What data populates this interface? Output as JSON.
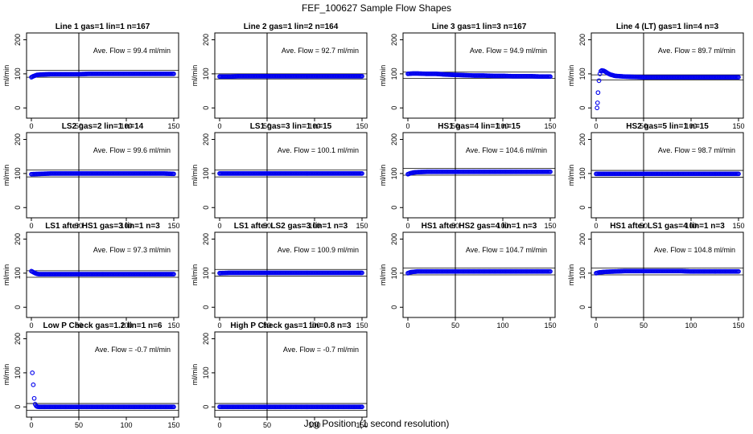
{
  "title": "FEF_100627  Sample Flow Shapes",
  "xlabel": "Jog Position (1 second resolution)",
  "colors": {
    "points": "#0000ee",
    "axes": "#000000",
    "background": "#ffffff"
  },
  "chart_data": [
    {
      "type": "scatter",
      "title": "Line 1 gas=1 lin=1 n=167",
      "ylabel": "ml/min",
      "annotation": "Ave. Flow =  99.4  ml/min",
      "xlim": [
        0,
        150
      ],
      "ylim": [
        -30,
        220
      ],
      "xticks": [
        0,
        50,
        100,
        150
      ],
      "yticks": [
        0,
        100,
        200
      ],
      "vline": 50,
      "hlines": [
        90,
        110
      ],
      "x": [
        0,
        2,
        4,
        6,
        10,
        20,
        30,
        40,
        50,
        60,
        70,
        80,
        90,
        100,
        110,
        120,
        130,
        140,
        150
      ],
      "y": [
        90,
        93,
        95,
        97,
        98,
        99,
        99,
        99,
        99,
        100,
        100,
        100,
        100,
        100,
        100,
        100,
        100,
        100,
        100
      ]
    },
    {
      "type": "scatter",
      "title": "Line 2 gas=1 lin=2 n=164",
      "ylabel": "ml/min",
      "annotation": "Ave. Flow =  92.7  ml/min",
      "xlim": [
        0,
        150
      ],
      "ylim": [
        -30,
        220
      ],
      "xticks": [
        0,
        50,
        100,
        150
      ],
      "yticks": [
        0,
        100,
        200
      ],
      "vline": 50,
      "hlines": [
        85,
        100
      ],
      "x": [
        0,
        10,
        20,
        30,
        40,
        50,
        60,
        70,
        80,
        90,
        100,
        110,
        120,
        130,
        140,
        150
      ],
      "y": [
        92,
        92,
        93,
        93,
        93,
        93,
        93,
        93,
        93,
        93,
        93,
        93,
        93,
        93,
        93,
        93
      ]
    },
    {
      "type": "scatter",
      "title": "Line 3 gas=1 lin=3 n=167",
      "ylabel": "ml/min",
      "annotation": "Ave. Flow =  94.9  ml/min",
      "xlim": [
        0,
        150
      ],
      "ylim": [
        -30,
        220
      ],
      "xticks": [
        0,
        50,
        100,
        150
      ],
      "yticks": [
        0,
        100,
        200
      ],
      "vline": 50,
      "hlines": [
        87,
        105
      ],
      "x": [
        0,
        5,
        10,
        20,
        30,
        40,
        50,
        60,
        70,
        80,
        90,
        100,
        110,
        120,
        130,
        140,
        150
      ],
      "y": [
        100,
        101,
        101,
        100,
        100,
        98,
        97,
        96,
        95,
        95,
        94,
        94,
        93,
        93,
        93,
        92,
        92
      ]
    },
    {
      "type": "scatter",
      "title": "Line 4 (LT) gas=1 lin=4 n=3",
      "ylabel": "ml/min",
      "annotation": "Ave. Flow =  89.7  ml/min",
      "xlim": [
        0,
        150
      ],
      "ylim": [
        -30,
        220
      ],
      "xticks": [
        0,
        50,
        100,
        150
      ],
      "yticks": [
        0,
        100,
        200
      ],
      "vline": 50,
      "hlines": [
        82,
        97
      ],
      "x": [
        1,
        1.5,
        2,
        3,
        4,
        5,
        6,
        8,
        10,
        12,
        15,
        20,
        30,
        40,
        50,
        60,
        70,
        80,
        90,
        100,
        110,
        120,
        130,
        140,
        150
      ],
      "y": [
        0,
        15,
        45,
        80,
        100,
        108,
        110,
        109,
        106,
        102,
        98,
        94,
        92,
        91,
        90,
        90,
        90,
        90,
        90,
        90,
        90,
        90,
        90,
        90,
        90
      ]
    },
    {
      "type": "scatter",
      "title": "LS2 gas=2 lin=1 n=14",
      "ylabel": "ml/min",
      "annotation": "Ave. Flow =  99.6  ml/min",
      "xlim": [
        0,
        150
      ],
      "ylim": [
        -30,
        220
      ],
      "xticks": [
        0,
        50,
        100,
        150
      ],
      "yticks": [
        0,
        100,
        200
      ],
      "vline": 50,
      "hlines": [
        90,
        110
      ],
      "x": [
        0,
        10,
        20,
        30,
        40,
        50,
        60,
        70,
        80,
        90,
        100,
        110,
        120,
        130,
        140,
        150
      ],
      "y": [
        98,
        99,
        100,
        100,
        100,
        100,
        100,
        100,
        100,
        100,
        100,
        100,
        100,
        100,
        100,
        99
      ]
    },
    {
      "type": "scatter",
      "title": "LS1 gas=3 lin=1 n=15",
      "ylabel": "ml/min",
      "annotation": "Ave. Flow =  100.1  ml/min",
      "xlim": [
        0,
        150
      ],
      "ylim": [
        -30,
        220
      ],
      "xticks": [
        0,
        50,
        100,
        150
      ],
      "yticks": [
        0,
        100,
        200
      ],
      "vline": 50,
      "hlines": [
        90,
        110
      ],
      "x": [
        0,
        10,
        20,
        30,
        40,
        50,
        60,
        70,
        80,
        90,
        100,
        110,
        120,
        130,
        140,
        150
      ],
      "y": [
        100,
        100,
        100,
        100,
        100,
        100,
        100,
        100,
        100,
        100,
        100,
        100,
        100,
        100,
        100,
        100
      ]
    },
    {
      "type": "scatter",
      "title": "HS1 gas=4 lin=1 n=15",
      "ylabel": "ml/min",
      "annotation": "Ave. Flow =  104.6  ml/min",
      "xlim": [
        0,
        150
      ],
      "ylim": [
        -30,
        220
      ],
      "xticks": [
        0,
        50,
        100,
        150
      ],
      "yticks": [
        0,
        100,
        200
      ],
      "vline": 50,
      "hlines": [
        95,
        115
      ],
      "x": [
        0,
        3,
        6,
        10,
        20,
        30,
        40,
        50,
        60,
        70,
        80,
        90,
        100,
        110,
        120,
        130,
        140,
        150
      ],
      "y": [
        98,
        101,
        103,
        104,
        105,
        105,
        105,
        105,
        105,
        105,
        105,
        105,
        105,
        105,
        105,
        105,
        105,
        105
      ]
    },
    {
      "type": "scatter",
      "title": "HS2 gas=5 lin=1 n=15",
      "ylabel": "ml/min",
      "annotation": "Ave. Flow =  98.7  ml/min",
      "xlim": [
        0,
        150
      ],
      "ylim": [
        -30,
        220
      ],
      "xticks": [
        0,
        50,
        100,
        150
      ],
      "yticks": [
        0,
        100,
        200
      ],
      "vline": 50,
      "hlines": [
        89,
        109
      ],
      "x": [
        0,
        10,
        20,
        30,
        40,
        50,
        60,
        70,
        80,
        90,
        100,
        110,
        120,
        130,
        140,
        150
      ],
      "y": [
        99,
        99,
        99,
        99,
        99,
        99,
        99,
        99,
        99,
        99,
        99,
        99,
        99,
        99,
        99,
        99
      ]
    },
    {
      "type": "scatter",
      "title": "LS1 after HS1 gas=3 lin=1 n=3",
      "ylabel": "ml/min",
      "annotation": "Ave. Flow =  97.3  ml/min",
      "xlim": [
        0,
        150
      ],
      "ylim": [
        -30,
        220
      ],
      "xticks": [
        0,
        50,
        100,
        150
      ],
      "yticks": [
        0,
        100,
        200
      ],
      "vline": 50,
      "hlines": [
        88,
        107
      ],
      "x": [
        0,
        2,
        4,
        6,
        8,
        10,
        15,
        20,
        30,
        40,
        50,
        60,
        70,
        80,
        90,
        100,
        110,
        120,
        130,
        140,
        150
      ],
      "y": [
        106,
        103,
        100,
        98,
        97,
        97,
        97,
        97,
        97,
        97,
        97,
        97,
        97,
        97,
        97,
        97,
        97,
        97,
        97,
        97,
        97
      ]
    },
    {
      "type": "scatter",
      "title": "LS1 after LS2 gas=3 lin=1 n=3",
      "ylabel": "ml/min",
      "annotation": "Ave. Flow =  100.9  ml/min",
      "xlim": [
        0,
        150
      ],
      "ylim": [
        -30,
        220
      ],
      "xticks": [
        0,
        50,
        100,
        150
      ],
      "yticks": [
        0,
        100,
        200
      ],
      "vline": 50,
      "hlines": [
        91,
        111
      ],
      "x": [
        0,
        10,
        20,
        30,
        40,
        50,
        60,
        70,
        80,
        90,
        100,
        110,
        120,
        130,
        140,
        150
      ],
      "y": [
        100,
        101,
        101,
        101,
        101,
        101,
        101,
        101,
        101,
        101,
        101,
        101,
        101,
        101,
        101,
        101
      ]
    },
    {
      "type": "scatter",
      "title": "HS1 after HS2 gas=4 lin=1 n=3",
      "ylabel": "ml/min",
      "annotation": "Ave. Flow =  104.7  ml/min",
      "xlim": [
        0,
        150
      ],
      "ylim": [
        -30,
        220
      ],
      "xticks": [
        0,
        50,
        100,
        150
      ],
      "yticks": [
        0,
        100,
        200
      ],
      "vline": 50,
      "hlines": [
        95,
        115
      ],
      "x": [
        0,
        3,
        6,
        10,
        20,
        30,
        40,
        50,
        60,
        70,
        80,
        90,
        100,
        110,
        120,
        130,
        140,
        150
      ],
      "y": [
        100,
        103,
        104,
        105,
        105,
        105,
        105,
        105,
        105,
        105,
        105,
        105,
        105,
        105,
        105,
        105,
        105,
        105
      ]
    },
    {
      "type": "scatter",
      "title": "HS1 after LS1 gas=4 lin=1 n=3",
      "ylabel": "ml/min",
      "annotation": "Ave. Flow =  104.8  ml/min",
      "xlim": [
        0,
        150
      ],
      "ylim": [
        -30,
        220
      ],
      "xticks": [
        0,
        50,
        100,
        150
      ],
      "yticks": [
        0,
        100,
        200
      ],
      "vline": 50,
      "hlines": [
        95,
        115
      ],
      "x": [
        0,
        3,
        6,
        10,
        20,
        30,
        40,
        50,
        60,
        70,
        80,
        90,
        100,
        110,
        120,
        130,
        140,
        150
      ],
      "y": [
        100,
        102,
        103,
        104,
        105,
        106,
        106,
        106,
        106,
        106,
        106,
        106,
        105,
        105,
        105,
        105,
        105,
        105
      ]
    },
    {
      "type": "scatter",
      "title": "Low P Check gas=1.2 lin=1 n=6",
      "ylabel": "ml/min",
      "annotation": "Ave. Flow =  -0.7  ml/min",
      "xlim": [
        0,
        150
      ],
      "ylim": [
        -30,
        220
      ],
      "xticks": [
        0,
        50,
        100,
        150
      ],
      "yticks": [
        0,
        100,
        200
      ],
      "vline": 50,
      "hlines": [
        -10,
        10
      ],
      "x": [
        1,
        2,
        3,
        4,
        5,
        6,
        8,
        10,
        15,
        20,
        30,
        40,
        50,
        60,
        70,
        80,
        90,
        100,
        110,
        120,
        130,
        140,
        150
      ],
      "y": [
        100,
        65,
        25,
        8,
        3,
        1,
        0,
        0,
        0,
        0,
        0,
        0,
        0,
        0,
        0,
        0,
        0,
        0,
        0,
        0,
        0,
        0,
        0
      ]
    },
    {
      "type": "scatter",
      "title": "High P Check gas=1 lin=0.8 n=3",
      "ylabel": "ml/min",
      "annotation": "Ave. Flow =  -0.7  ml/min",
      "xlim": [
        0,
        150
      ],
      "ylim": [
        -30,
        220
      ],
      "xticks": [
        0,
        50,
        100,
        150
      ],
      "yticks": [
        0,
        100,
        200
      ],
      "vline": 50,
      "hlines": [
        -10,
        10
      ],
      "x": [
        0,
        10,
        20,
        30,
        40,
        50,
        60,
        70,
        80,
        90,
        100,
        110,
        120,
        130,
        140,
        150
      ],
      "y": [
        0,
        0,
        0,
        0,
        0,
        0,
        0,
        0,
        0,
        0,
        0,
        0,
        0,
        0,
        0,
        0
      ]
    }
  ]
}
